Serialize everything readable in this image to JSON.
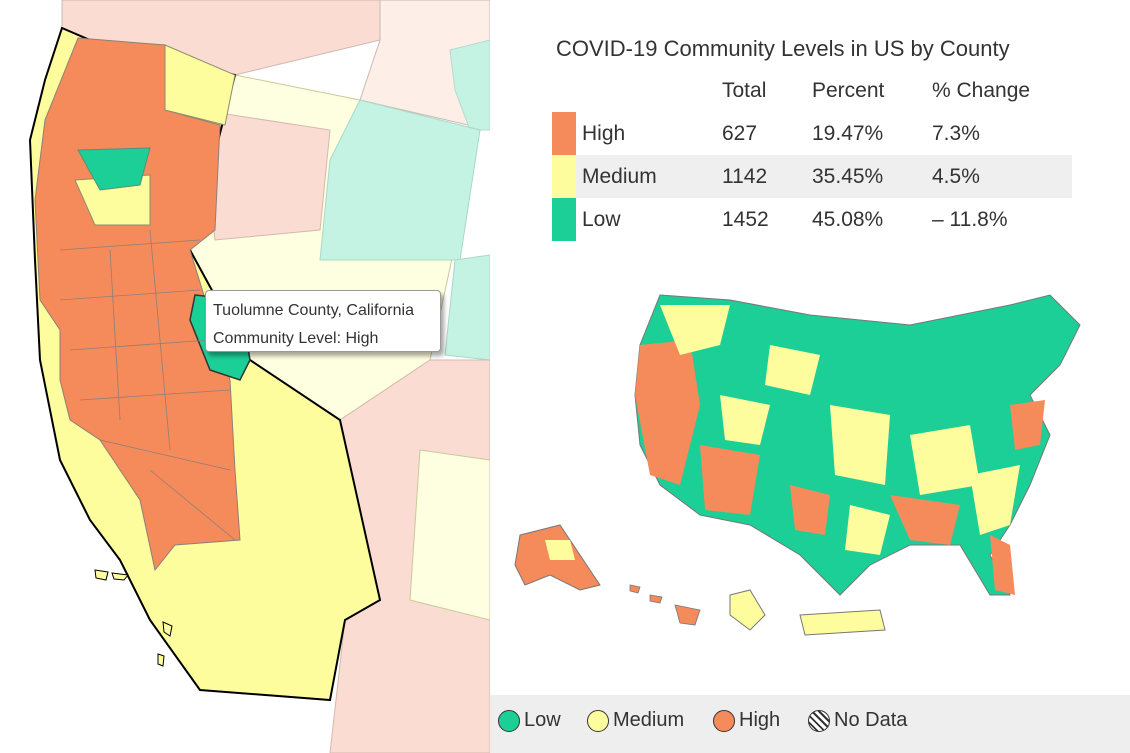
{
  "colors": {
    "high": "#f58a5b",
    "medium": "#fdfd9d",
    "low": "#1ccf97",
    "bg_high": "#fbdcd2",
    "bg_medium": "#fefee0",
    "bg_low": "#c4f2e3"
  },
  "tooltip": {
    "county": "Tuolumne County, California",
    "level": "Community Level: High"
  },
  "summary": {
    "title": "COVID-19 Community Levels in US by County",
    "headers": {
      "total": "Total",
      "percent": "Percent",
      "change": "% Change"
    },
    "rows": [
      {
        "level": "High",
        "total": "627",
        "percent": "19.47%",
        "change": "7.3%",
        "color": "#f58a5b"
      },
      {
        "level": "Medium",
        "total": "1142",
        "percent": "35.45%",
        "change": "4.5%",
        "color": "#fdfd9d"
      },
      {
        "level": "Low",
        "total": "1452",
        "percent": "45.08%",
        "change": "– 11.8%",
        "color": "#1ccf97"
      }
    ]
  },
  "legend": [
    {
      "label": "Low",
      "color": "#1ccf97"
    },
    {
      "label": "Medium",
      "color": "#fdfd9d"
    },
    {
      "label": "High",
      "color": "#f58a5b"
    },
    {
      "label": "No Data",
      "color": "hatch"
    }
  ]
}
